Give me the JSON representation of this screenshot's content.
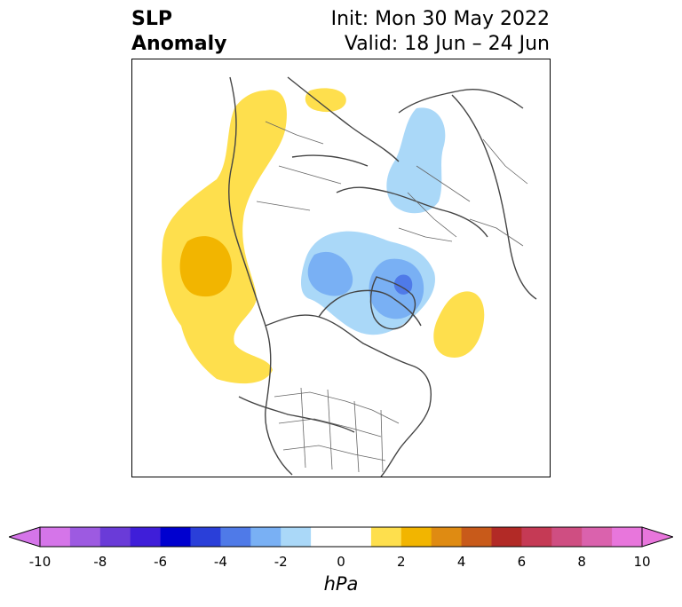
{
  "title": {
    "line1": "SLP",
    "line2": "Anomaly"
  },
  "init": "Init: Mon 30 May 2022",
  "valid": "Valid: 18 Jun – 24 Jun",
  "colorbar": {
    "unit": "hPa",
    "ticks": [
      "-10",
      "-8",
      "-6",
      "-4",
      "-2",
      "0",
      "2",
      "4",
      "6",
      "8",
      "10"
    ],
    "min_color": "#d575e9",
    "max_color": "#e876dc",
    "colors": [
      "#d575e9",
      "#9d5ae1",
      "#6a3bd8",
      "#3f1ed9",
      "#0000cf",
      "#2a3fd9",
      "#4f7ae8",
      "#79b0f4",
      "#aad8f8",
      "#ffffff",
      "#ffffff",
      "#fedf4d",
      "#f2b500",
      "#df8b12",
      "#c85a1a",
      "#b22a26",
      "#c53a55",
      "#cf4e82",
      "#da62ad",
      "#e876dc"
    ]
  },
  "anomaly_colors": {
    "pos1": "#fedf4d",
    "pos2": "#f2b500",
    "neg1": "#aad8f8",
    "neg2": "#79b0f4",
    "neg3": "#4f7ae8",
    "neg4": "#2a3fd9"
  }
}
